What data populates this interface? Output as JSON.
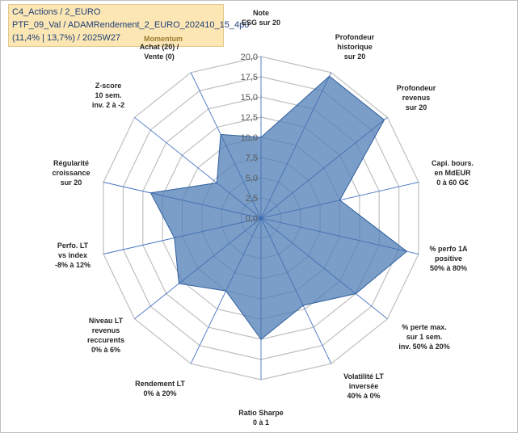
{
  "header": {
    "line1": "C4_Actions / 2_EURO",
    "line2": "PTF_09_Val / ADAMRendement_2_EURO_202410_15_4p0",
    "line3": "(11,4% | 13,7%) / 2025W27"
  },
  "chart_data": {
    "type": "radar",
    "rmin": 0,
    "rmax": 20,
    "ticks": [
      "0,0",
      "2,5",
      "5,0",
      "7,5",
      "10,0",
      "12,5",
      "15,0",
      "17,5",
      "20,0"
    ],
    "colors": {
      "fill": "#4f7db5",
      "stroke": "#2f5f9f",
      "grid": "#bfbfbf",
      "spoke": "#4472c4"
    },
    "axes": [
      {
        "label": [
          "Note",
          "ESG sur 20"
        ]
      },
      {
        "label": [
          "Profondeur",
          "historique",
          "sur 20"
        ]
      },
      {
        "label": [
          "Profondeur",
          "revenus",
          "sur 20"
        ]
      },
      {
        "label": [
          "Capi. bours.",
          "en MdEUR",
          "0 à 60 G€"
        ]
      },
      {
        "label": [
          "% perfo 1A",
          "positive",
          "50% à 80%"
        ]
      },
      {
        "label": [
          "% perte max.",
          "sur 1 sem.",
          "inv. 50% à 20%"
        ]
      },
      {
        "label": [
          "Volatilité LT",
          "inversée",
          "40% à 0%"
        ]
      },
      {
        "label": [
          "Ratio Sharpe",
          "0 à 1"
        ]
      },
      {
        "label": [
          "Rendement LT",
          "0% à 20%"
        ]
      },
      {
        "label": [
          "Niveau LT",
          "revenus",
          "reccurents",
          "0% à 6%"
        ]
      },
      {
        "label": [
          "Perfo. LT",
          "vs index",
          "-8% à 12%"
        ]
      },
      {
        "label": [
          "Régularité",
          "croissance",
          "sur 20"
        ]
      },
      {
        "label": [
          "Z-score",
          "10 sem.",
          "inv. 2 à -2"
        ]
      },
      {
        "label": [
          "Achat (20) /",
          "Vente (0)"
        ],
        "group": "Momentum"
      }
    ],
    "series": [
      {
        "values": [
          10.0,
          19.5,
          19.5,
          10.0,
          18.5,
          15.0,
          12.0,
          15.0,
          10.0,
          13.0,
          11.0,
          14.0,
          7.0,
          11.5
        ]
      }
    ]
  }
}
